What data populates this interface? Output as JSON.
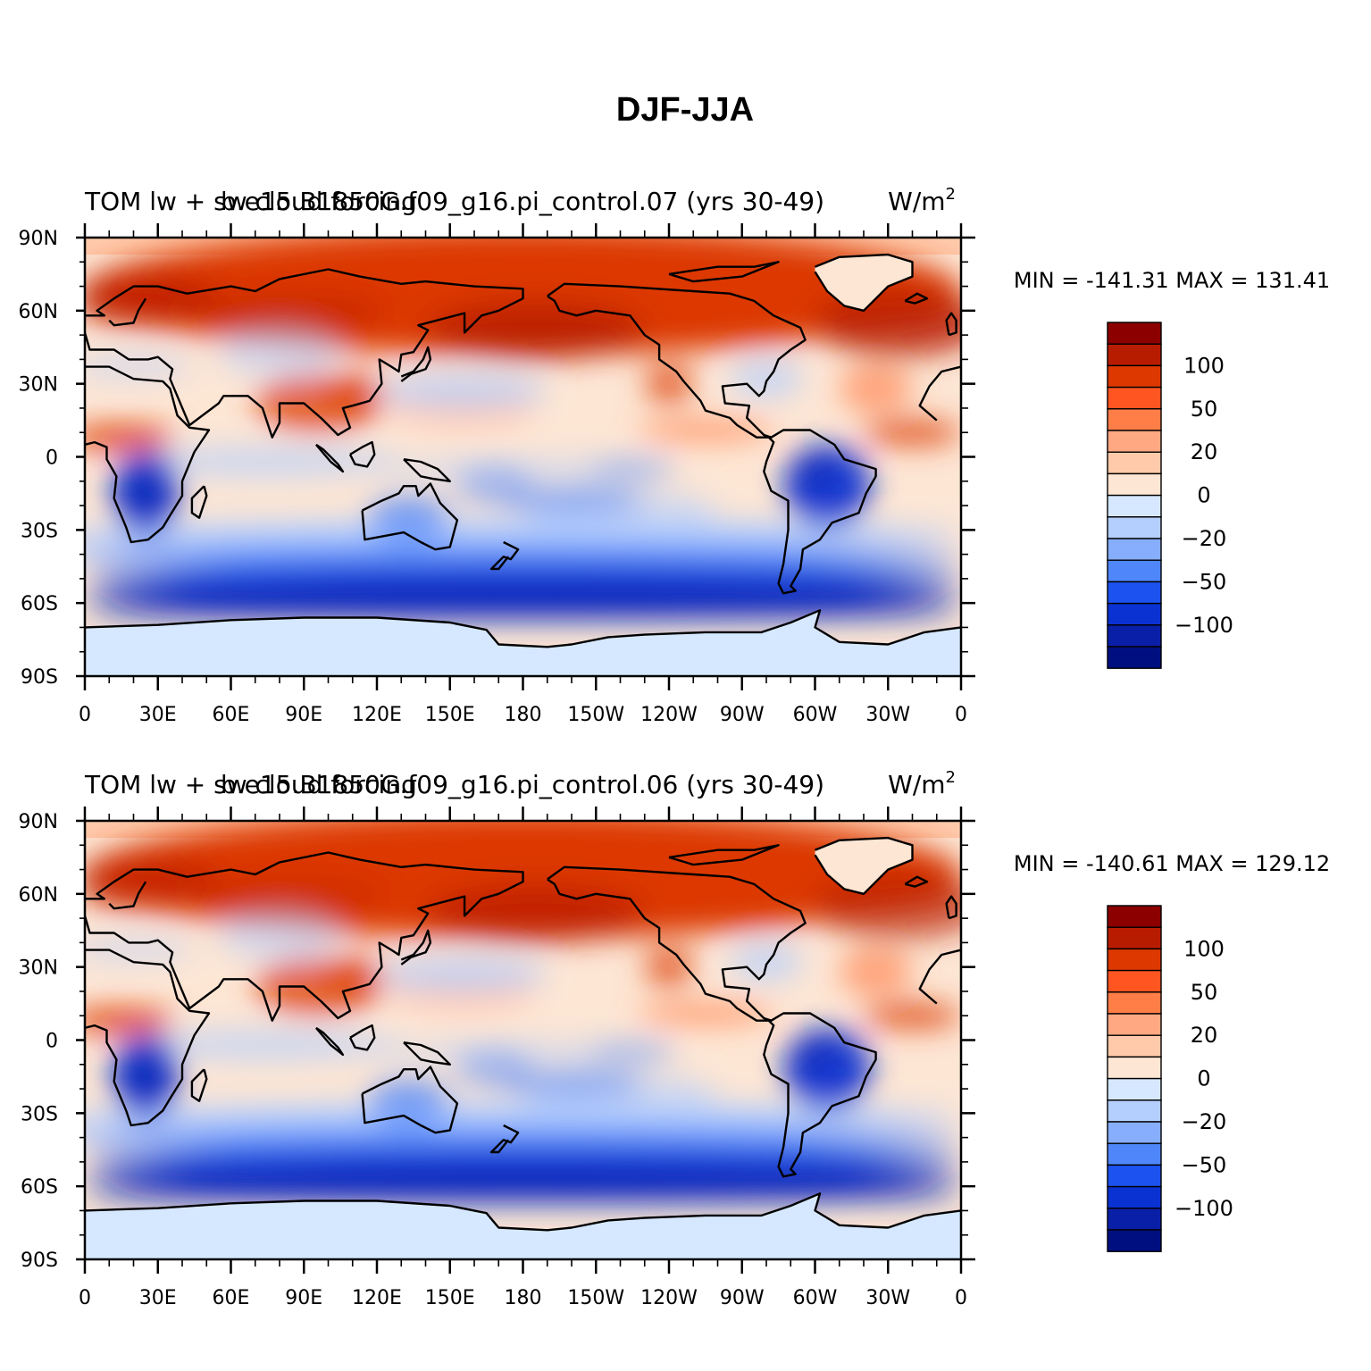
{
  "figure": {
    "title": "DJF-JJA"
  },
  "panels": [
    {
      "left_title": "TOM lw + sw cloud forcing",
      "center_title": "b.e15.B1850G.f09_g16.pi_control.07 (yrs 30-49)",
      "units": "W/m",
      "units_exp": "2",
      "minmax": "MIN = -141.31  MAX = 131.41"
    },
    {
      "left_title": "TOM lw + sw cloud forcing",
      "center_title": "b.e15.B1850G.f09_g16.pi_control.06 (yrs 30-49)",
      "units": "W/m",
      "units_exp": "2",
      "minmax": "MIN = -140.61  MAX = 129.12"
    }
  ],
  "axes": {
    "lat_labels": [
      "90N",
      "60N",
      "30N",
      "0",
      "30S",
      "60S",
      "90S"
    ],
    "lon_labels": [
      "0",
      "30E",
      "60E",
      "90E",
      "120E",
      "150E",
      "180",
      "150W",
      "120W",
      "90W",
      "60W",
      "30W",
      "0"
    ]
  },
  "colorbar": {
    "labels": [
      "100",
      "50",
      "20",
      "0",
      "−20",
      "−50",
      "−100"
    ],
    "colors_top_to_bottom": [
      "#8c0000",
      "#b81c00",
      "#dc3800",
      "#ff5520",
      "#ff7e48",
      "#ffa882",
      "#ffcaaa",
      "#fde6d4",
      "#d6e8ff",
      "#b4cefe",
      "#86aefc",
      "#4f87fa",
      "#1c53f0",
      "#0a32d2",
      "#0a1fa8",
      "#000f80"
    ]
  },
  "map": {
    "colors": {
      "ocean_base": "#fde6d4",
      "arctic": "#ffcaaa",
      "antarctic": "#d6e8ff",
      "red_strong": "#dc3800",
      "red_dark": "#b81c00",
      "red_mid": "#ff7e48",
      "blue_light": "#b4cefe",
      "blue_mid": "#4f87fa",
      "blue_dark": "#0a32d2",
      "blue_deep": "#0a1fa8",
      "coast": "#000000"
    }
  }
}
